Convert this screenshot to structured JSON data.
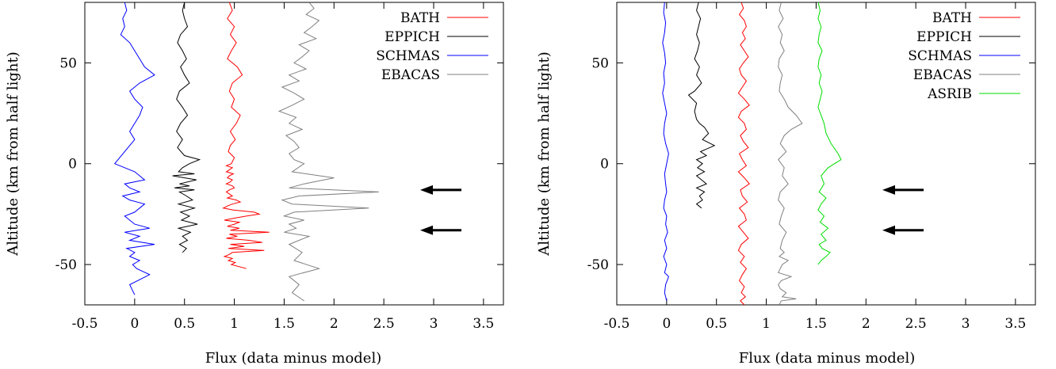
{
  "chart_data": [
    {
      "type": "line",
      "xlabel": "Flux (data minus model)",
      "ylabel": "Altitude (km from half light)",
      "xlim": [
        -0.5,
        3.7
      ],
      "ylim": [
        -70,
        80
      ],
      "xticks": [
        "-0.5",
        "0",
        "0.5",
        "1",
        "1.5",
        "2",
        "2.5",
        "3",
        "3.5"
      ],
      "xtick_values": [
        -0.5,
        0,
        0.5,
        1,
        1.5,
        2,
        2.5,
        3,
        3.5
      ],
      "yticks": [
        "-50",
        "0",
        "50"
      ],
      "ytick_values": [
        -50,
        0,
        50
      ],
      "grid": false,
      "legend_position": "top-right",
      "series": [
        {
          "name": "BATH",
          "color": "#ff0000",
          "x": [
            0.95,
            0.98,
            0.93,
            1.0,
            0.96,
            1.02,
            0.97,
            0.93,
            1.03,
            1.08,
            0.98,
            0.95,
            1.0,
            0.97,
            1.06,
            1.02,
            0.96,
            1.01,
            0.96,
            0.94,
            1.0,
            0.97,
            0.92,
            0.98,
            0.95,
            0.92,
            0.99,
            0.95,
            0.93,
            0.98,
            0.96,
            0.92,
            0.98,
            1.0,
            0.95,
            0.92,
            0.95,
            0.98,
            0.93,
            1.02,
            1.06,
            0.98,
            0.93,
            0.89,
            0.99,
            1.2,
            1.25,
            1.12,
            1.0,
            0.9,
            1.05,
            1.0,
            0.93,
            1.05,
            0.96,
            1.35,
            0.95,
            1.03,
            0.92,
            1.15,
            1.28,
            0.96,
            1.1,
            0.94,
            1.3,
            0.98,
            0.95,
            0.9,
            0.98,
            0.94,
            1.01,
            0.97,
            1.12
          ],
          "y": [
            80,
            76,
            72,
            68,
            64,
            60,
            56,
            52,
            48,
            44,
            40,
            36,
            32,
            28,
            24,
            20,
            16,
            12,
            9,
            6,
            3,
            0,
            -1,
            -2,
            -3,
            -4,
            -5,
            -6,
            -7,
            -8,
            -9,
            -10,
            -11,
            -12,
            -13,
            -14,
            -15,
            -16,
            -17,
            -18,
            -19,
            -20,
            -21,
            -22,
            -23,
            -24,
            -25,
            -26,
            -27,
            -28,
            -29,
            -30,
            -31,
            -32,
            -33,
            -34,
            -35,
            -36,
            -37,
            -38,
            -39,
            -40,
            -41,
            -42,
            -43,
            -44,
            -45,
            -46,
            -47,
            -48,
            -49,
            -50,
            -52
          ]
        },
        {
          "name": "EPPICH",
          "color": "#000000",
          "x": [
            0.5,
            0.48,
            0.5,
            0.53,
            0.46,
            0.43,
            0.48,
            0.52,
            0.46,
            0.5,
            0.55,
            0.45,
            0.42,
            0.48,
            0.53,
            0.46,
            0.42,
            0.48,
            0.43,
            0.5,
            0.65,
            0.55,
            0.48,
            0.44,
            0.6,
            0.38,
            0.62,
            0.45,
            0.55,
            0.4,
            0.6,
            0.45,
            0.52,
            0.58,
            0.44,
            0.6,
            0.46,
            0.55,
            0.47,
            0.63,
            0.44,
            0.56,
            0.48,
            0.53,
            0.45,
            0.52,
            0.48
          ],
          "y": [
            80,
            76,
            72,
            68,
            64,
            60,
            56,
            52,
            48,
            44,
            40,
            36,
            32,
            28,
            24,
            20,
            16,
            12,
            8,
            4,
            2,
            0,
            -2,
            -4,
            -5,
            -6,
            -8,
            -10,
            -11,
            -12,
            -13,
            -14,
            -16,
            -18,
            -20,
            -22,
            -24,
            -26,
            -28,
            -30,
            -32,
            -34,
            -36,
            -38,
            -40,
            -42,
            -44
          ]
        },
        {
          "name": "SCHMAS",
          "color": "#0000ff",
          "x": [
            -0.1,
            -0.08,
            -0.12,
            -0.1,
            -0.14,
            -0.05,
            0.0,
            0.05,
            0.1,
            0.2,
            0.05,
            -0.05,
            0.0,
            0.08,
            0.05,
            0.0,
            -0.05,
            0.0,
            -0.2,
            -0.1,
            0.0,
            0.05,
            0.1,
            -0.1,
            -0.05,
            0.05,
            -0.12,
            -0.05,
            0.1,
            0.05,
            0.0,
            -0.1,
            -0.05,
            0.0,
            0.15,
            -0.1,
            0.05,
            -0.05,
            0.2,
            -0.08,
            0.0,
            -0.05,
            0.05,
            -0.02,
            0.02,
            0.15,
            -0.05,
            0.0
          ],
          "y": [
            80,
            76,
            72,
            68,
            64,
            60,
            56,
            52,
            48,
            44,
            40,
            36,
            32,
            28,
            24,
            20,
            16,
            12,
            0,
            -2,
            -4,
            -6,
            -8,
            -10,
            -12,
            -14,
            -16,
            -18,
            -20,
            -22,
            -24,
            -26,
            -28,
            -30,
            -32,
            -34,
            -36,
            -38,
            -40,
            -42,
            -44,
            -46,
            -48,
            -50,
            -52,
            -55,
            -60,
            -65
          ]
        },
        {
          "name": "EBACAS",
          "color": "#808080",
          "x": [
            1.75,
            1.8,
            1.72,
            1.85,
            1.78,
            1.7,
            1.82,
            1.65,
            1.75,
            1.68,
            1.6,
            1.72,
            1.55,
            1.65,
            1.48,
            1.6,
            1.7,
            1.58,
            1.45,
            1.62,
            1.55,
            1.68,
            1.52,
            1.6,
            1.65,
            1.55,
            1.6,
            1.7,
            1.58,
            2.0,
            1.7,
            1.55,
            2.45,
            1.65,
            1.48,
            1.58,
            2.35,
            1.6,
            1.5,
            1.7,
            1.55,
            1.62,
            1.5,
            1.75,
            1.55,
            1.68,
            1.6,
            1.85,
            1.55,
            1.65,
            1.58,
            1.7
          ],
          "y": [
            80,
            77,
            74,
            71,
            68,
            65,
            62,
            59,
            56,
            53,
            50,
            47,
            44,
            41,
            38,
            35,
            32,
            29,
            26,
            23,
            20,
            17,
            14,
            11,
            8,
            5,
            2,
            0,
            -4,
            -7,
            -10,
            -12,
            -14,
            -16,
            -18,
            -20,
            -22,
            -24,
            -26,
            -28,
            -30,
            -32,
            -34,
            -36,
            -40,
            -44,
            -48,
            -52,
            -56,
            -60,
            -64,
            -68
          ]
        }
      ],
      "arrows": [
        {
          "y": -13
        },
        {
          "y": -33
        }
      ]
    },
    {
      "type": "line",
      "xlabel": "Flux (data minus model)",
      "ylabel": "Altitude (km from half light)",
      "xlim": [
        -0.5,
        3.7
      ],
      "ylim": [
        -70,
        80
      ],
      "xticks": [
        "-0.5",
        "0",
        "0.5",
        "1",
        "1.5",
        "2",
        "2.5",
        "3",
        "3.5"
      ],
      "xtick_values": [
        -0.5,
        0,
        0.5,
        1,
        1.5,
        2,
        2.5,
        3,
        3.5
      ],
      "yticks": [
        "-50",
        "0",
        "50"
      ],
      "ytick_values": [
        -50,
        0,
        50
      ],
      "grid": false,
      "legend_position": "top-right",
      "series": [
        {
          "name": "BATH",
          "color": "#ff0000",
          "x": [
            0.75,
            0.77,
            0.73,
            0.78,
            0.8,
            0.76,
            0.79,
            0.74,
            0.78,
            0.82,
            0.77,
            0.73,
            0.75,
            0.8,
            0.76,
            0.72,
            0.78,
            0.83,
            0.75,
            0.72,
            0.78,
            0.8,
            0.74,
            0.77,
            0.82,
            0.73,
            0.76,
            0.8,
            0.72,
            0.78,
            0.83,
            0.74,
            0.76,
            0.81,
            0.73,
            0.78,
            0.8,
            0.72,
            0.77,
            0.82,
            0.75,
            0.72,
            0.78,
            0.74,
            0.8,
            0.76,
            0.73,
            0.78,
            0.75,
            0.79,
            0.74,
            0.76,
            0.78
          ],
          "y": [
            80,
            77,
            74,
            71,
            68,
            65,
            62,
            59,
            56,
            53,
            50,
            47,
            44,
            41,
            38,
            35,
            32,
            29,
            26,
            23,
            20,
            17,
            14,
            11,
            8,
            5,
            2,
            -1,
            -4,
            -7,
            -10,
            -13,
            -16,
            -19,
            -22,
            -25,
            -28,
            -31,
            -34,
            -37,
            -40,
            -43,
            -46,
            -49,
            -52,
            -55,
            -58,
            -61,
            -64,
            -66,
            -68,
            -69,
            -70
          ]
        },
        {
          "name": "EPPICH",
          "color": "#000000",
          "x": [
            0.32,
            0.3,
            0.34,
            0.32,
            0.3,
            0.33,
            0.31,
            0.28,
            0.33,
            0.3,
            0.35,
            0.28,
            0.22,
            0.3,
            0.28,
            0.3,
            0.33,
            0.38,
            0.42,
            0.36,
            0.48,
            0.34,
            0.4,
            0.3,
            0.36,
            0.31,
            0.38,
            0.3,
            0.35,
            0.4,
            0.3,
            0.38,
            0.33,
            0.36,
            0.3,
            0.35
          ],
          "y": [
            80,
            76,
            72,
            68,
            64,
            60,
            56,
            52,
            48,
            44,
            40,
            36,
            34,
            30,
            26,
            22,
            20,
            18,
            15,
            12,
            9,
            6,
            4,
            2,
            0,
            -2,
            -4,
            -6,
            -8,
            -10,
            -12,
            -14,
            -16,
            -18,
            -20,
            -22
          ]
        },
        {
          "name": "SCHMAS",
          "color": "#0000ff",
          "x": [
            -0.02,
            -0.03,
            -0.01,
            -0.02,
            -0.04,
            -0.02,
            -0.01,
            -0.03,
            -0.02,
            -0.04,
            -0.02,
            0.0,
            -0.02,
            -0.03,
            -0.01,
            0.02,
            0.0,
            -0.02,
            -0.01,
            0.0,
            -0.02,
            -0.03,
            0.0,
            -0.01,
            0.01,
            -0.02,
            0.0,
            -0.03,
            0.0,
            -0.02,
            0.02,
            -0.01,
            -0.02,
            0.0
          ],
          "y": [
            80,
            75,
            70,
            65,
            60,
            55,
            50,
            45,
            40,
            35,
            30,
            25,
            20,
            15,
            10,
            5,
            0,
            -5,
            -10,
            -14,
            -18,
            -22,
            -26,
            -30,
            -34,
            -38,
            -42,
            -46,
            -50,
            -54,
            -56,
            -60,
            -64,
            -68
          ]
        },
        {
          "name": "EBACAS",
          "color": "#808080",
          "x": [
            1.15,
            1.13,
            1.17,
            1.12,
            1.16,
            1.14,
            1.18,
            1.13,
            1.12,
            1.16,
            1.14,
            1.13,
            1.18,
            1.22,
            1.3,
            1.36,
            1.25,
            1.18,
            1.14,
            1.2,
            1.12,
            1.18,
            1.16,
            1.22,
            1.14,
            1.12,
            1.18,
            1.15,
            1.13,
            1.2,
            1.16,
            1.14,
            1.18,
            1.13,
            1.22,
            1.16,
            1.14,
            1.12,
            1.25,
            1.15,
            1.12,
            1.14,
            1.2,
            1.16,
            1.3,
            1.15,
            1.13
          ],
          "y": [
            80,
            76,
            72,
            68,
            64,
            60,
            56,
            52,
            48,
            44,
            40,
            36,
            32,
            28,
            24,
            20,
            17,
            14,
            10,
            6,
            2,
            -2,
            -6,
            -10,
            -14,
            -18,
            -22,
            -26,
            -30,
            -34,
            -38,
            -42,
            -44,
            -46,
            -48,
            -50,
            -52,
            -54,
            -56,
            -58,
            -60,
            -62,
            -64,
            -66,
            -67,
            -68,
            -70
          ]
        },
        {
          "name": "ASRIB",
          "color": "#00dd00",
          "x": [
            1.52,
            1.54,
            1.52,
            1.55,
            1.53,
            1.52,
            1.56,
            1.53,
            1.52,
            1.55,
            1.53,
            1.56,
            1.54,
            1.52,
            1.55,
            1.58,
            1.6,
            1.65,
            1.72,
            1.75,
            1.62,
            1.55,
            1.58,
            1.53,
            1.6,
            1.55,
            1.52,
            1.58,
            1.54,
            1.62,
            1.55,
            1.6,
            1.53,
            1.56,
            1.64,
            1.6,
            1.55,
            1.52
          ],
          "y": [
            80,
            76,
            72,
            68,
            64,
            60,
            56,
            52,
            48,
            44,
            40,
            36,
            32,
            28,
            24,
            20,
            15,
            10,
            5,
            2,
            -2,
            -6,
            -10,
            -14,
            -17,
            -20,
            -23,
            -26,
            -29,
            -32,
            -35,
            -38,
            -40,
            -42,
            -44,
            -46,
            -48,
            -50
          ]
        }
      ],
      "arrows": [
        {
          "y": -13
        },
        {
          "y": -33
        }
      ]
    }
  ]
}
